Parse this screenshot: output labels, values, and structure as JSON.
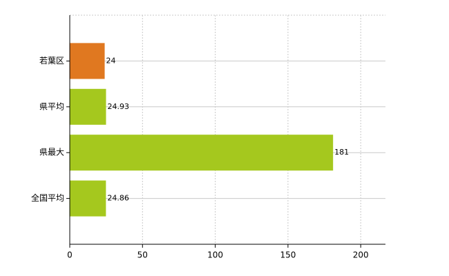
{
  "chart_data": {
    "type": "barh",
    "categories": [
      "若葉区",
      "県平均",
      "県最大",
      "全国平均"
    ],
    "values": [
      24,
      24.93,
      181,
      24.86
    ],
    "colors": [
      "#e07820",
      "#a5c81e",
      "#a5c81e",
      "#a5c81e"
    ],
    "xlim": [
      0,
      217
    ],
    "xticks": [
      0,
      50,
      100,
      150,
      200
    ],
    "grid": true
  }
}
